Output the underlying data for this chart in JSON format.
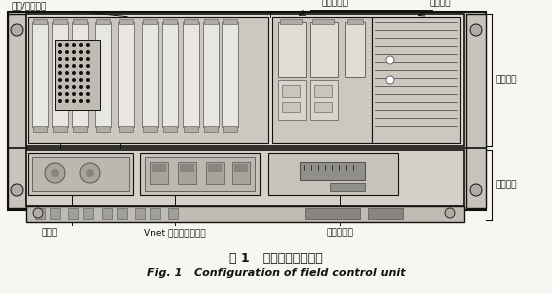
{
  "title_cn": "图 1   现场控制站的组态",
  "title_en": "Fig. 1   Configuration of field control unit",
  "bg_color": "#f8f6f0",
  "labels": {
    "input_output": "输入/输出模块",
    "process_card": "过程控制卡",
    "power_module": "电源模块",
    "basic_device": "基本装置",
    "practical_device": "实用装置",
    "cable_groove": "电缆槽",
    "vnet": "Vnet 通讯网络连接器",
    "external_port": "外部接口器"
  }
}
